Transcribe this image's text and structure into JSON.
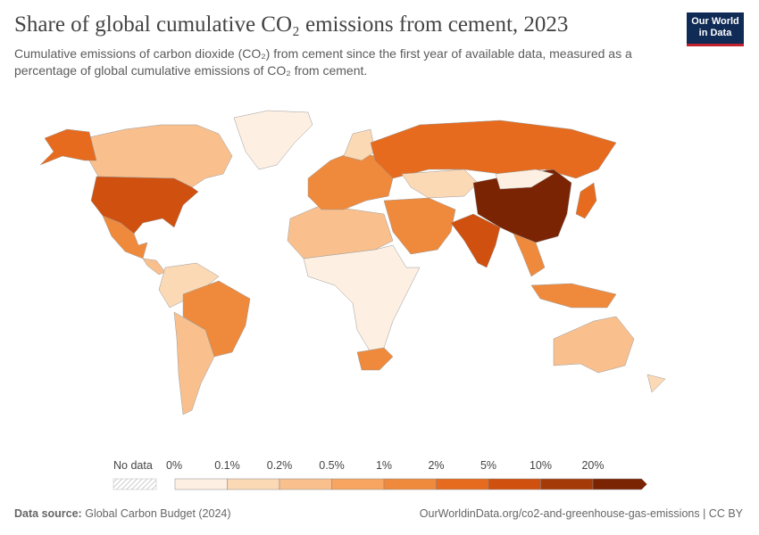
{
  "header": {
    "title": "Share of global cumulative CO₂ emissions from cement, 2023",
    "subtitle": "Cumulative emissions of carbon dioxide (CO₂) from cement since the first year of available data, measured as a percentage of global cumulative emissions of CO₂ from cement."
  },
  "logo": [
    "Our World",
    "in Data"
  ],
  "legend": {
    "no_data": "No data",
    "bins": [
      {
        "label": "0%",
        "color": "#fdf0e2"
      },
      {
        "label": "0.1%",
        "color": "#fbd9b5"
      },
      {
        "label": "0.2%",
        "color": "#f9c08e"
      },
      {
        "label": "0.5%",
        "color": "#f7a560"
      },
      {
        "label": "1%",
        "color": "#ef8a3c"
      },
      {
        "label": "2%",
        "color": "#e66b1e"
      },
      {
        "label": "5%",
        "color": "#d0500f"
      },
      {
        "label": "10%",
        "color": "#a53a09"
      },
      {
        "label": "20%",
        "color": "#7a2404"
      }
    ]
  },
  "footer": {
    "source_label": "Data source:",
    "source": "Global Carbon Budget (2024)",
    "url": "OurWorldinData.org/co2-and-greenhouse-gas-emissions | CC BY"
  }
}
